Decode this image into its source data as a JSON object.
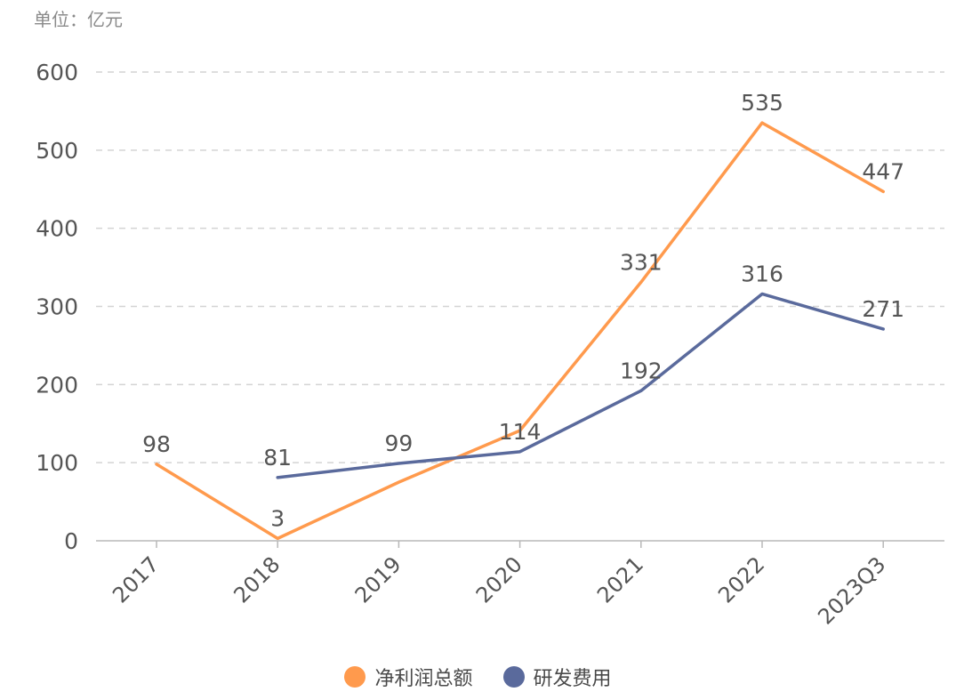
{
  "unit_label": "单位：亿元",
  "chart_data": {
    "type": "line",
    "categories": [
      "2017",
      "2018",
      "2019",
      "2020",
      "2021",
      "2022",
      "2023Q3"
    ],
    "ylim": [
      0,
      600
    ],
    "yticks": [
      0,
      100,
      200,
      300,
      400,
      500,
      600
    ],
    "grid": true,
    "legend_position": "bottom-center",
    "series": [
      {
        "name": "净利润总额",
        "color": "#FF9A4D",
        "values": [
          98,
          3,
          75,
          141,
          331,
          535,
          447
        ],
        "labels": [
          "98",
          "3",
          "",
          "",
          "331",
          "535",
          "447"
        ]
      },
      {
        "name": "研发费用",
        "color": "#5A6A9C",
        "values": [
          null,
          81,
          99,
          114,
          192,
          316,
          271
        ],
        "labels": [
          "",
          "81",
          "99",
          "114",
          "192",
          "316",
          "271"
        ]
      }
    ]
  }
}
